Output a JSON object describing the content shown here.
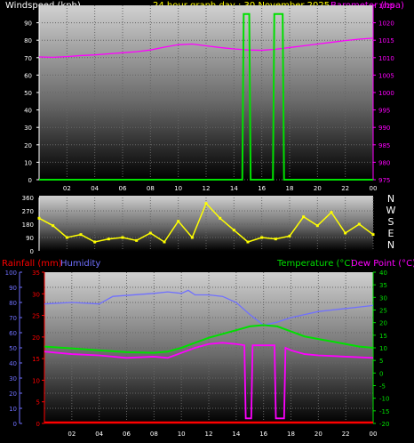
{
  "header": {
    "windspeed_label": "Windspeed (kph)",
    "graph_title": "24 hour graph day : 30 November 2025",
    "barometer_label": "Barometer (hpa)"
  },
  "mid": {
    "rainfall_label": "Rainfall (mm)",
    "humidity_label": "Humidity",
    "temperature_label": "Temperature (°C)",
    "dewpoint_label": "Dew Point (°C)"
  },
  "compass": [
    "N",
    "W",
    "S",
    "E",
    "N"
  ],
  "x_ticks": [
    "02",
    "04",
    "06",
    "08",
    "10",
    "12",
    "14",
    "16",
    "18",
    "20",
    "22",
    "00"
  ],
  "colors": {
    "windspeed": "#00e000",
    "barometer": "#ff00ff",
    "direction": "#ffff00",
    "rainfall": "#ff0000",
    "humidity": "#7070ff",
    "temperature": "#00e000",
    "dewpoint": "#ff00ff",
    "title": "#ffff00",
    "grid": "#666666"
  },
  "chart_data": [
    {
      "type": "line",
      "title": "24 hour graph day : 30 November 2025",
      "x_range_hours": [
        0,
        24
      ],
      "ylabel_left": "Windspeed (kph)",
      "ylabel_right": "Barometer (hpa)",
      "y_left_ticks": [
        "0",
        "10",
        "20",
        "30",
        "40",
        "50",
        "60",
        "70",
        "80",
        "90"
      ],
      "y_left_range": [
        0,
        100
      ],
      "y_right_ticks": [
        "975",
        "980",
        "985",
        "990",
        "995",
        "1000",
        "1005",
        "1010",
        "1015",
        "1020",
        "1025"
      ],
      "y_right_range": [
        975,
        1025
      ],
      "series": [
        {
          "name": "Windspeed (kph)",
          "axis": "left",
          "x": [
            0,
            14.6,
            14.7,
            15.1,
            15.2,
            16.8,
            16.9,
            17.5,
            17.6,
            24
          ],
          "y": [
            0,
            0,
            95,
            95,
            0,
            0,
            95,
            95,
            0,
            0
          ]
        },
        {
          "name": "Barometer (hpa)",
          "axis": "right",
          "x": [
            0,
            1,
            2,
            3,
            4,
            5,
            6,
            7,
            8,
            9,
            10,
            11,
            12,
            13,
            14,
            15,
            16,
            17,
            18,
            19,
            20,
            21,
            22,
            23,
            24
          ],
          "y": [
            1010.2,
            1010.1,
            1010.3,
            1010.6,
            1010.8,
            1011.1,
            1011.4,
            1011.7,
            1012.2,
            1013.0,
            1013.7,
            1013.9,
            1013.4,
            1012.9,
            1012.5,
            1012.2,
            1012.1,
            1012.4,
            1012.9,
            1013.4,
            1013.9,
            1014.4,
            1014.9,
            1015.3,
            1015.6
          ]
        }
      ]
    },
    {
      "type": "scatter",
      "title": "",
      "ylabel": "",
      "y_ticks": [
        "360",
        "270",
        "180",
        "90",
        "0"
      ],
      "y_range": [
        0,
        360
      ],
      "series": [
        {
          "name": "Wind direction",
          "x": [
            0,
            1,
            2,
            3,
            4,
            5,
            6,
            7,
            8,
            9,
            10,
            11,
            12,
            13,
            14,
            15,
            16,
            17,
            18,
            19,
            20,
            21,
            22,
            23,
            24
          ],
          "y": [
            220,
            170,
            90,
            110,
            60,
            80,
            90,
            70,
            120,
            60,
            200,
            90,
            320,
            220,
            140,
            60,
            90,
            80,
            100,
            230,
            170,
            260,
            120,
            180,
            110
          ]
        }
      ]
    },
    {
      "type": "line",
      "title": "",
      "ylabel_left_outer": "Humidity",
      "y_left_outer_ticks": [
        "0",
        "10",
        "20",
        "30",
        "40",
        "50",
        "60",
        "70",
        "80",
        "90",
        "100"
      ],
      "y_left_outer_range": [
        0,
        100
      ],
      "ylabel_left_inner": "Rainfall (mm)",
      "y_left_inner_ticks": [
        "0",
        "5",
        "10",
        "15",
        "20",
        "25",
        "30",
        "35"
      ],
      "y_left_inner_range": [
        0,
        35
      ],
      "ylabel_right": "Temperature (°C)",
      "y_right_ticks": [
        "-20",
        "-15",
        "-10",
        "-5",
        "0",
        "5",
        "10",
        "15",
        "20",
        "25",
        "30",
        "35",
        "40"
      ],
      "y_right_range": [
        -20,
        40
      ],
      "series": [
        {
          "name": "Humidity",
          "axis": "left_outer",
          "x": [
            0,
            2,
            4,
            5,
            8,
            9,
            10,
            10.5,
            11,
            12,
            13,
            14,
            15,
            16,
            17,
            18,
            19,
            20,
            21,
            22,
            23,
            24
          ],
          "y": [
            79,
            80,
            79,
            84,
            86,
            87,
            86,
            88,
            85,
            85,
            84,
            80,
            72,
            65,
            67,
            70,
            72,
            74,
            75,
            76,
            77,
            78
          ]
        },
        {
          "name": "Temperature (°C)",
          "axis": "right",
          "x": [
            0,
            2,
            4,
            6,
            8,
            9,
            10,
            11,
            12,
            13,
            14,
            15,
            16,
            17,
            18,
            19,
            20,
            21,
            22,
            23,
            24
          ],
          "y": [
            10.5,
            9.8,
            9.0,
            8.3,
            8.0,
            8.5,
            10.0,
            12.0,
            14.0,
            15.5,
            17.0,
            18.5,
            19.0,
            18.5,
            16.5,
            14.5,
            13.5,
            12.5,
            11.5,
            10.5,
            10.0
          ]
        },
        {
          "name": "Dew Point (°C)",
          "axis": "right",
          "x": [
            0,
            2,
            4,
            6,
            8,
            9,
            10,
            11,
            12,
            13,
            14,
            14.6,
            14.7,
            15.1,
            15.2,
            16,
            16.8,
            16.9,
            17.5,
            17.6,
            18,
            19,
            20,
            22,
            24
          ],
          "y": [
            8.5,
            7.5,
            7.0,
            6.0,
            6.5,
            6.0,
            8.0,
            10.0,
            11.5,
            12.0,
            11.5,
            11.0,
            -18,
            -18,
            11.0,
            11.0,
            11.0,
            -18,
            -18,
            10.0,
            9.0,
            7.5,
            7.0,
            6.5,
            6.0
          ]
        },
        {
          "name": "Rainfall (mm)",
          "axis": "left_inner",
          "x": [
            0,
            24
          ],
          "y": [
            0,
            0
          ]
        }
      ]
    }
  ]
}
